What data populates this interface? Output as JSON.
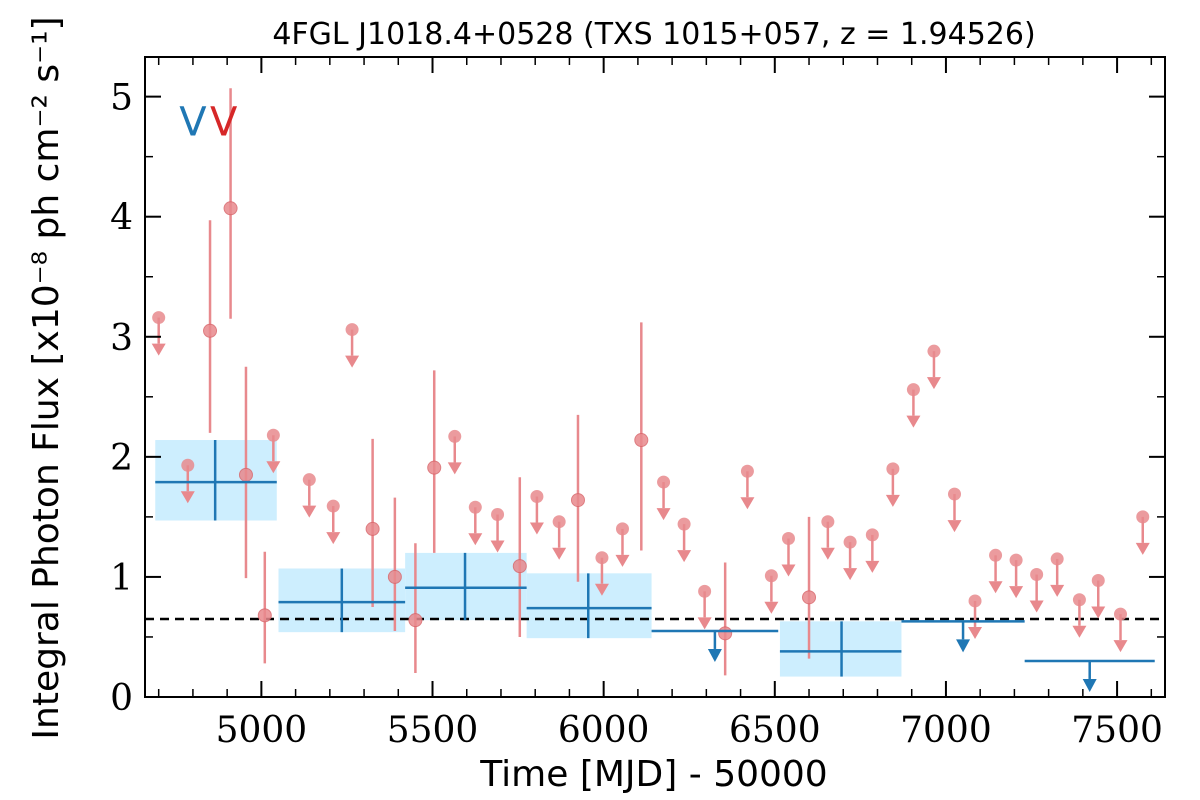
{
  "chart_data": {
    "type": "scatter",
    "title": "4FGL J1018.4+0528 (TXS 1015+057, z = 1.94526)",
    "xlabel": "Time [MJD] - 50000",
    "ylabel": "Integral Photon Flux [x10⁻⁸ ph cm⁻² s⁻¹]",
    "xlim": [
      4660,
      7640
    ],
    "ylim": [
      0,
      5.33
    ],
    "xticks": [
      5000,
      5500,
      6000,
      6500,
      7000,
      7500
    ],
    "yticks": [
      0,
      1,
      2,
      3,
      4,
      5
    ],
    "reference_line": {
      "y": 0.65,
      "style": "dashed",
      "color": "#000000"
    },
    "markers": [
      {
        "label": "V",
        "x": 4800,
        "y": 4.8,
        "color": "#1f77b4"
      },
      {
        "label": "V",
        "x": 4890,
        "y": 4.8,
        "color": "#d62728"
      }
    ],
    "series": [
      {
        "color": "#e8898d",
        "detections": [
          {
            "x": 4850,
            "y": 3.05,
            "lo": 2.2,
            "hi": 3.97
          },
          {
            "x": 4910,
            "y": 4.07,
            "lo": 3.15,
            "hi": 5.07
          },
          {
            "x": 4955,
            "y": 1.85,
            "lo": 0.99,
            "hi": 2.75
          },
          {
            "x": 5010,
            "y": 0.68,
            "lo": 0.28,
            "hi": 1.21
          },
          {
            "x": 5325,
            "y": 1.4,
            "lo": 0.75,
            "hi": 2.15
          },
          {
            "x": 5390,
            "y": 1.0,
            "lo": 0.55,
            "hi": 1.66
          },
          {
            "x": 5450,
            "y": 0.64,
            "lo": 0.2,
            "hi": 1.28
          },
          {
            "x": 5505,
            "y": 1.91,
            "lo": 1.2,
            "hi": 2.72
          },
          {
            "x": 5755,
            "y": 1.09,
            "lo": 0.5,
            "hi": 1.83
          },
          {
            "x": 5925,
            "y": 1.64,
            "lo": 0.96,
            "hi": 2.35
          },
          {
            "x": 6110,
            "y": 2.14,
            "lo": 1.22,
            "hi": 3.12
          },
          {
            "x": 6355,
            "y": 0.53,
            "lo": 0.18,
            "hi": 1.12
          },
          {
            "x": 6600,
            "y": 0.83,
            "lo": 0.32,
            "hi": 1.5
          }
        ],
        "upper_limits": [
          {
            "x": 4700,
            "y": 3.16
          },
          {
            "x": 4785,
            "y": 1.93
          },
          {
            "x": 5035,
            "y": 2.18
          },
          {
            "x": 5140,
            "y": 1.81
          },
          {
            "x": 5210,
            "y": 1.59
          },
          {
            "x": 5265,
            "y": 3.06
          },
          {
            "x": 5565,
            "y": 2.17
          },
          {
            "x": 5625,
            "y": 1.58
          },
          {
            "x": 5690,
            "y": 1.52
          },
          {
            "x": 5805,
            "y": 1.67
          },
          {
            "x": 5870,
            "y": 1.46
          },
          {
            "x": 5995,
            "y": 1.16
          },
          {
            "x": 6055,
            "y": 1.4
          },
          {
            "x": 6175,
            "y": 1.79
          },
          {
            "x": 6235,
            "y": 1.44
          },
          {
            "x": 6295,
            "y": 0.88
          },
          {
            "x": 6420,
            "y": 1.88
          },
          {
            "x": 6490,
            "y": 1.01
          },
          {
            "x": 6540,
            "y": 1.32
          },
          {
            "x": 6655,
            "y": 1.46
          },
          {
            "x": 6720,
            "y": 1.29
          },
          {
            "x": 6785,
            "y": 1.35
          },
          {
            "x": 6845,
            "y": 1.9
          },
          {
            "x": 6905,
            "y": 2.56
          },
          {
            "x": 6965,
            "y": 2.88
          },
          {
            "x": 7025,
            "y": 1.69
          },
          {
            "x": 7085,
            "y": 0.8
          },
          {
            "x": 7145,
            "y": 1.18
          },
          {
            "x": 7205,
            "y": 1.14
          },
          {
            "x": 7265,
            "y": 1.02
          },
          {
            "x": 7325,
            "y": 1.15
          },
          {
            "x": 7390,
            "y": 0.81
          },
          {
            "x": 7445,
            "y": 0.97
          },
          {
            "x": 7510,
            "y": 0.69
          },
          {
            "x": 7575,
            "y": 1.5
          }
        ]
      },
      {
        "color": "#1f77b4",
        "band_color": "#cdeefe",
        "detections": [
          {
            "x": 4865,
            "x0": 4690,
            "x1": 5045,
            "y": 1.79,
            "lo": 1.47,
            "hi": 2.14
          },
          {
            "x": 5235,
            "x0": 5050,
            "x1": 5420,
            "y": 0.79,
            "lo": 0.54,
            "hi": 1.07
          },
          {
            "x": 5595,
            "x0": 5420,
            "x1": 5775,
            "y": 0.91,
            "lo": 0.64,
            "hi": 1.2
          },
          {
            "x": 5955,
            "x0": 5775,
            "x1": 6140,
            "y": 0.74,
            "lo": 0.49,
            "hi": 1.03
          },
          {
            "x": 6695,
            "x0": 6515,
            "x1": 6870,
            "y": 0.38,
            "lo": 0.17,
            "hi": 0.63
          }
        ],
        "upper_limits": [
          {
            "x": 6325,
            "x0": 6140,
            "x1": 6510,
            "y": 0.55
          },
          {
            "x": 7050,
            "x0": 6870,
            "x1": 7230,
            "y": 0.63
          },
          {
            "x": 7420,
            "x0": 7230,
            "x1": 7610,
            "y": 0.3
          }
        ]
      }
    ]
  }
}
